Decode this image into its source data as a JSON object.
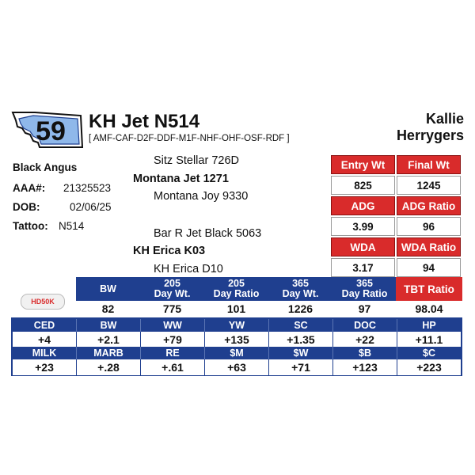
{
  "lot": "59",
  "animal_name": "KH Jet N514",
  "genetic_conditions": "[ AMF-CAF-D2F-DDF-M1F-NHF-OHF-OSF-RDF ]",
  "consignor": [
    "Kallie",
    "Herrygers"
  ],
  "breed": "Black Angus",
  "registration": {
    "label": "AAA#:",
    "value": "21325523"
  },
  "dob": {
    "label": "DOB:",
    "value": "02/06/25"
  },
  "tattoo": {
    "label": "Tattoo:",
    "value": "N514"
  },
  "pedigree": {
    "sire_sire": "Sitz Stellar 726D",
    "sire": "Montana Jet 1271",
    "sire_dam": "Montana Joy 9330",
    "dam_sire": "Bar R Jet Black 5063",
    "dam": "KH Erica K03",
    "dam_dam": "KH Erica D10"
  },
  "performance": {
    "entry_wt_label": "Entry Wt",
    "entry_wt": "825",
    "final_wt_label": "Final Wt",
    "final_wt": "1245",
    "adg_label": "ADG",
    "adg": "3.99",
    "adg_ratio_label": "ADG Ratio",
    "adg_ratio": "96",
    "wda_label": "WDA",
    "wda": "3.17",
    "wda_ratio_label": "WDA Ratio",
    "wda_ratio": "94",
    "tbt_ratio_label": "TBT Ratio",
    "tbt_ratio": "98.04"
  },
  "weights": {
    "headers": [
      "BW",
      "205\nDay Wt.",
      "205\nDay Ratio",
      "365\nDay Wt.",
      "365\nDay Ratio"
    ],
    "values": [
      "82",
      "775",
      "101",
      "1226",
      "97"
    ]
  },
  "badge": "HD50K",
  "epd_row1": {
    "headers": [
      "CED",
      "BW",
      "WW",
      "YW",
      "SC",
      "DOC",
      "HP"
    ],
    "values": [
      "+4",
      "+2.1",
      "+79",
      "+135",
      "+1.35",
      "+22",
      "+11.1"
    ]
  },
  "epd_row2": {
    "headers": [
      "MILK",
      "MARB",
      "RE",
      "$M",
      "$W",
      "$B",
      "$C"
    ],
    "values": [
      "+23",
      "+.28",
      "+.61",
      "+63",
      "+71",
      "+123",
      "+223"
    ]
  },
  "colors": {
    "red": "#d92b2b",
    "blue": "#1f3f8f"
  }
}
